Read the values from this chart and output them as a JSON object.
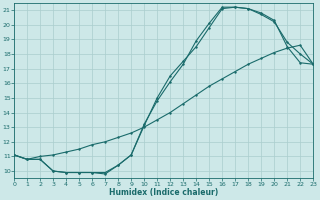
{
  "xlabel": "Humidex (Indice chaleur)",
  "bg_color": "#cde8e8",
  "grid_color": "#aacece",
  "line_color": "#1a6b6b",
  "xlim": [
    0,
    23
  ],
  "ylim": [
    9.5,
    21.5
  ],
  "xticks": [
    0,
    1,
    2,
    3,
    4,
    5,
    6,
    7,
    8,
    9,
    10,
    11,
    12,
    13,
    14,
    15,
    16,
    17,
    18,
    19,
    20,
    21,
    22,
    23
  ],
  "yticks": [
    10,
    11,
    12,
    13,
    14,
    15,
    16,
    17,
    18,
    19,
    20,
    21
  ],
  "line1_x": [
    0,
    1,
    2,
    3,
    4,
    5,
    6,
    7,
    8,
    9,
    10,
    11,
    12,
    13,
    14,
    15,
    16,
    17,
    18,
    19,
    20,
    21,
    22,
    23
  ],
  "line1_y": [
    11.1,
    10.8,
    10.8,
    10.0,
    9.9,
    9.9,
    9.9,
    9.9,
    10.4,
    11.1,
    13.1,
    15.0,
    16.5,
    17.5,
    18.5,
    19.8,
    21.1,
    21.2,
    21.1,
    20.7,
    20.2,
    18.8,
    18.0,
    17.3
  ],
  "line2_x": [
    0,
    1,
    2,
    3,
    4,
    5,
    6,
    7,
    8,
    9,
    10,
    11,
    12,
    13,
    14,
    15,
    16,
    17,
    18,
    19,
    20,
    21,
    22,
    23
  ],
  "line2_y": [
    11.1,
    10.8,
    11.0,
    11.1,
    11.3,
    11.5,
    11.8,
    12.0,
    12.3,
    12.6,
    13.0,
    13.5,
    14.0,
    14.6,
    15.2,
    15.8,
    16.3,
    16.8,
    17.3,
    17.7,
    18.1,
    18.4,
    18.6,
    17.3
  ],
  "line3_x": [
    0,
    1,
    2,
    3,
    4,
    5,
    6,
    7,
    8,
    9,
    10,
    11,
    12,
    13,
    14,
    15,
    16,
    17,
    18,
    19,
    20,
    21,
    22,
    23
  ],
  "line3_y": [
    11.1,
    10.8,
    10.8,
    10.0,
    9.9,
    9.9,
    9.9,
    9.8,
    10.4,
    11.1,
    13.2,
    14.8,
    16.1,
    17.3,
    18.9,
    20.1,
    21.2,
    21.2,
    21.1,
    20.8,
    20.3,
    18.5,
    17.4,
    17.3
  ]
}
